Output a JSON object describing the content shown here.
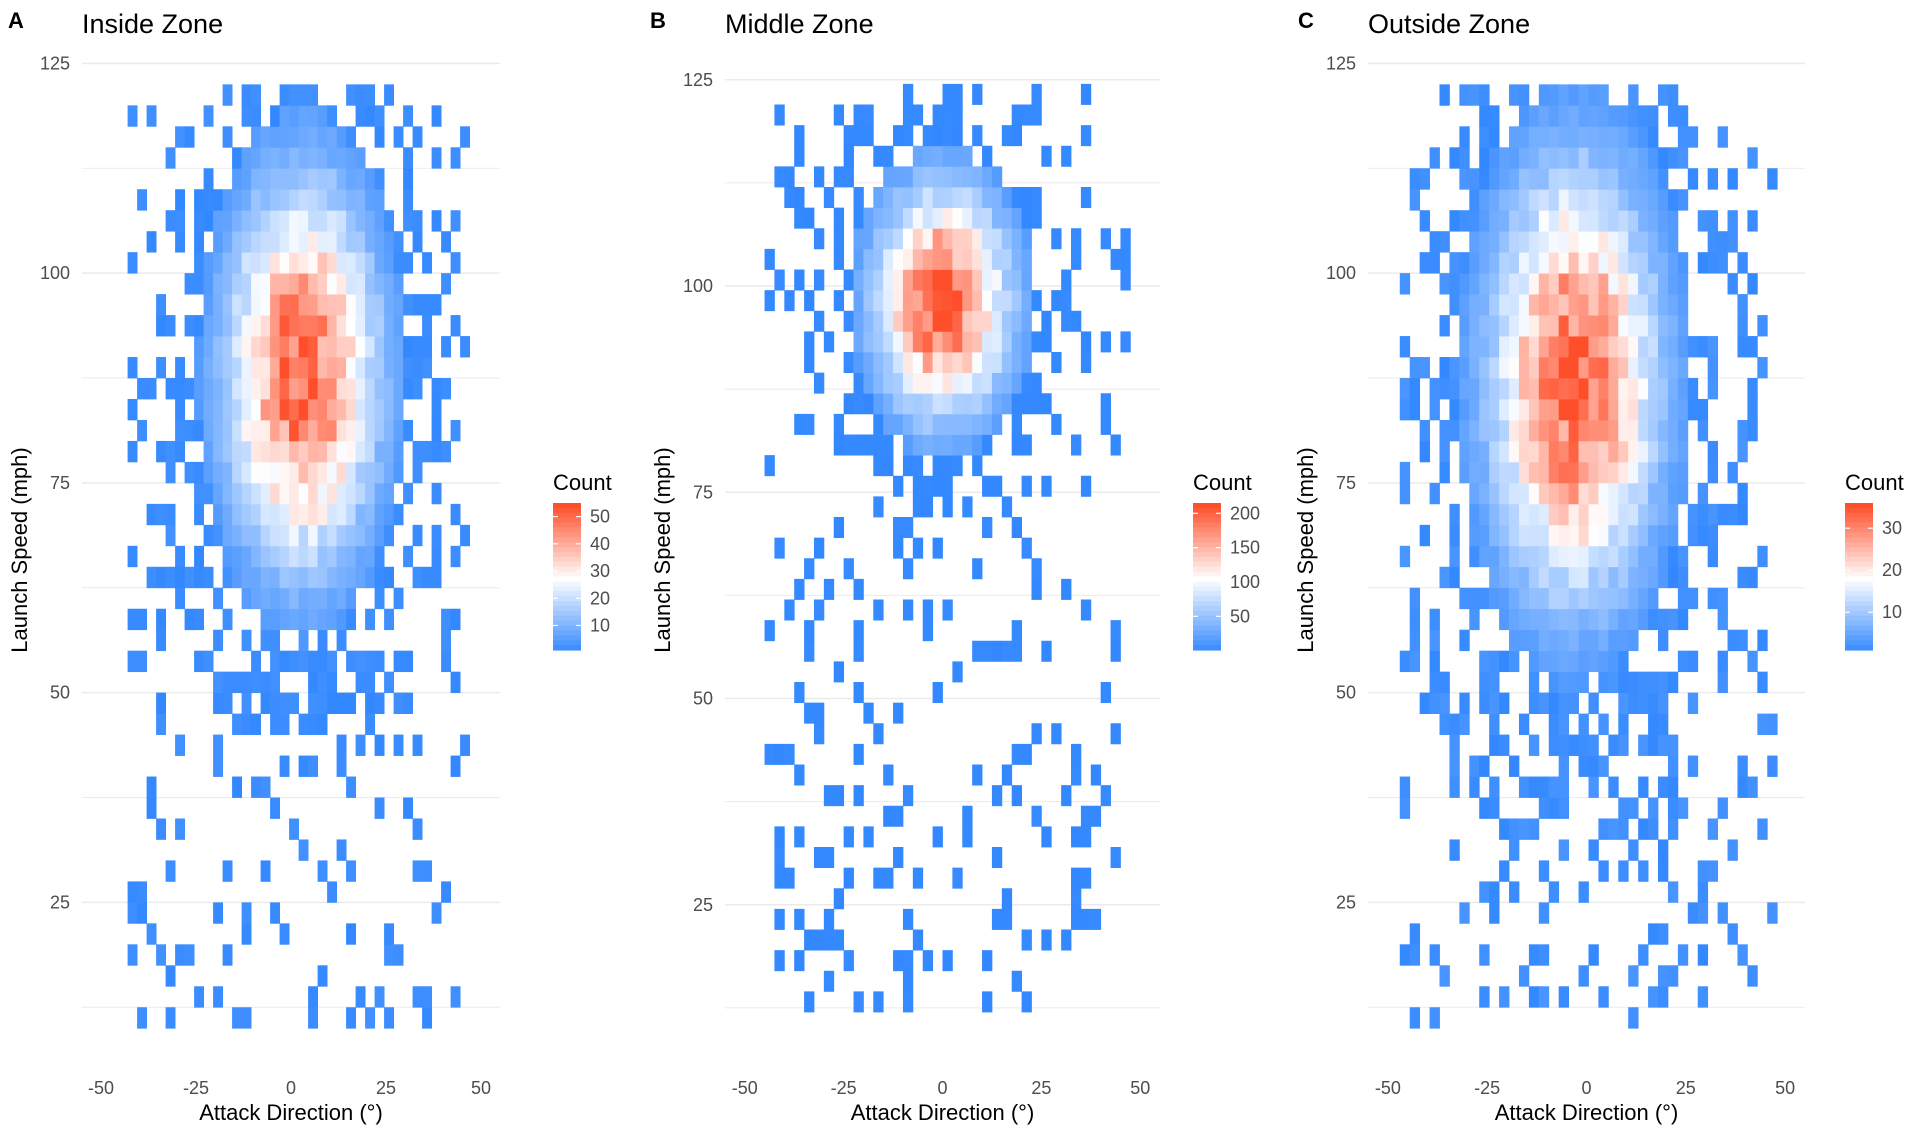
{
  "colors": {
    "low": "#3388ff",
    "mid": "#ffffff",
    "high": "#ff4e2a",
    "grid": "#ebebeb",
    "text": "#000000",
    "axis_text": "#4d4d4d"
  },
  "chart_data": [
    {
      "type": "heatmap",
      "panel_letter": "A",
      "title": "Inside Zone",
      "xlabel": "Attack Direction (°)",
      "ylabel": "Launch Speed (mph)",
      "xlim": [
        -55,
        55
      ],
      "ylim": [
        8,
        126
      ],
      "x_ticks": [
        -50,
        -25,
        0,
        25,
        50
      ],
      "y_ticks": [
        25,
        50,
        75,
        100,
        125
      ],
      "grid": true,
      "legend_title": "Count",
      "legend_ticks": [
        10,
        20,
        30,
        40,
        50
      ],
      "count_range": [
        1,
        55
      ],
      "legend_position": "right",
      "bin_width_deg": 2.5,
      "bin_height_mph": 2.5,
      "density": {
        "cx": 3,
        "cy": 88,
        "sx": 13,
        "sy": 15,
        "peak": 52,
        "xmin": -43,
        "xmax": 45,
        "ymin": 10,
        "ymax": 122,
        "speed_floor": 55,
        "sparse_prob": 0.45,
        "seed": 11
      }
    },
    {
      "type": "heatmap",
      "panel_letter": "B",
      "title": "Middle Zone",
      "xlabel": "Attack Direction (°)",
      "ylabel": "Launch Speed (mph)",
      "xlim": [
        -55,
        55
      ],
      "ylim": [
        8,
        128
      ],
      "x_ticks": [
        -50,
        -25,
        0,
        25,
        50
      ],
      "y_ticks": [
        25,
        50,
        75,
        100,
        125
      ],
      "grid": true,
      "legend_title": "Count",
      "legend_ticks": [
        50,
        100,
        150,
        200
      ],
      "count_range": [
        1,
        215
      ],
      "legend_position": "right",
      "bin_width_deg": 2.5,
      "bin_height_mph": 2.5,
      "density": {
        "cx": 0,
        "cy": 98,
        "sx": 11,
        "sy": 9,
        "peak": 210,
        "xmin": -45,
        "xmax": 47,
        "ymin": 12,
        "ymax": 124,
        "speed_floor": 57,
        "sparse_prob": 0.45,
        "seed": 23
      }
    },
    {
      "type": "heatmap",
      "panel_letter": "C",
      "title": "Outside Zone",
      "xlabel": "Attack Direction (°)",
      "ylabel": "Launch Speed (mph)",
      "xlim": [
        -55,
        55
      ],
      "ylim": [
        8,
        126
      ],
      "x_ticks": [
        -50,
        -25,
        0,
        25,
        50
      ],
      "y_ticks": [
        25,
        50,
        75,
        100,
        125
      ],
      "grid": true,
      "legend_title": "Count",
      "legend_ticks": [
        10,
        20,
        30
      ],
      "count_range": [
        1,
        36
      ],
      "legend_position": "right",
      "bin_width_deg": 2.5,
      "bin_height_mph": 2.5,
      "density": {
        "cx": -3,
        "cy": 87,
        "sx": 14,
        "sy": 17,
        "peak": 34,
        "xmin": -47,
        "xmax": 47,
        "ymin": 10,
        "ymax": 122,
        "speed_floor": 55,
        "sparse_prob": 0.45,
        "seed": 37
      }
    }
  ]
}
